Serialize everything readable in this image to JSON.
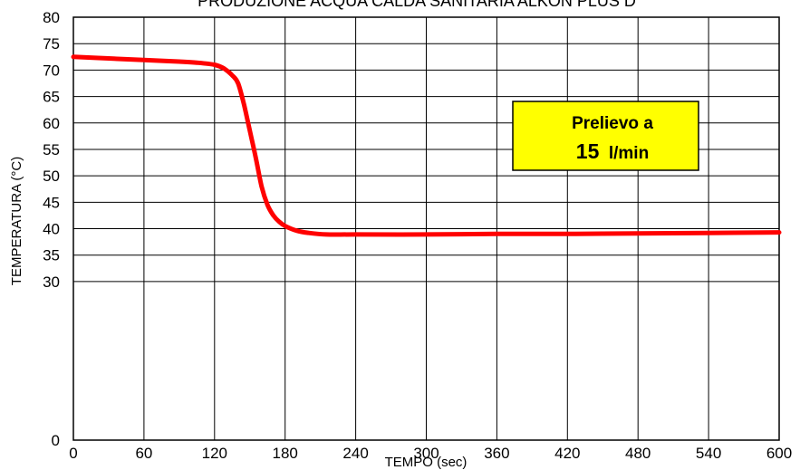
{
  "chart_data": {
    "type": "line",
    "title": "PRODUZIONE ACQUA CALDA SANITARIA ALKON PLUS D",
    "xlabel": "TEMPO (sec)",
    "ylabel": "TEMPERATURA (°C)",
    "xlim": [
      0,
      600
    ],
    "ylim": [
      0,
      80
    ],
    "x_ticks": [
      0,
      60,
      120,
      180,
      240,
      300,
      360,
      420,
      480,
      540,
      600
    ],
    "y_ticks": [
      0,
      30,
      35,
      40,
      45,
      50,
      55,
      60,
      65,
      70,
      75,
      80
    ],
    "grid": true,
    "series": [
      {
        "color": "#ff0000",
        "x": [
          0,
          30,
          60,
          90,
          105,
          120,
          128,
          135,
          140,
          145,
          150,
          155,
          160,
          165,
          170,
          175,
          180,
          190,
          200,
          215,
          240,
          300,
          360,
          420,
          480,
          540,
          600
        ],
        "y": [
          72.5,
          72.2,
          71.9,
          71.6,
          71.4,
          71.0,
          70.3,
          69.0,
          67.5,
          63.5,
          58.5,
          53.5,
          48.0,
          44.5,
          42.5,
          41.3,
          40.5,
          39.6,
          39.2,
          38.9,
          38.9,
          38.9,
          39.0,
          39.0,
          39.1,
          39.2,
          39.3
        ]
      }
    ],
    "annotation": {
      "line1": "Prelievo a",
      "line2_value": "15",
      "line2_unit": "l/min",
      "background": "#ffff00"
    }
  }
}
